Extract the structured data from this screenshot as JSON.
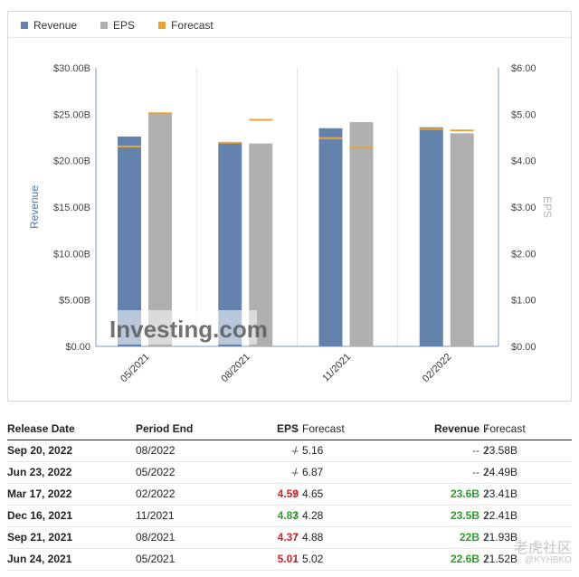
{
  "legend": {
    "revenue_label": "Revenue",
    "eps_label": "EPS",
    "forecast_label": "Forecast"
  },
  "colors": {
    "revenue": "#6383ad",
    "eps": "#b0b0b0",
    "forecast": "#e8a33a",
    "positive": "#2a9d2a",
    "negative": "#dd1f1f"
  },
  "chart_data": {
    "type": "bar",
    "categories": [
      "05/2021",
      "08/2021",
      "11/2021",
      "02/2022"
    ],
    "series": [
      {
        "name": "Revenue",
        "axis": "left",
        "values": [
          22.6,
          22.0,
          23.5,
          23.6
        ],
        "forecast": [
          21.52,
          21.93,
          22.41,
          23.41
        ]
      },
      {
        "name": "EPS",
        "axis": "right",
        "values": [
          5.01,
          4.37,
          4.83,
          4.59
        ],
        "forecast": [
          5.02,
          4.88,
          4.28,
          4.65
        ]
      }
    ],
    "left_axis": {
      "label": "Revenue",
      "ticks": [
        "$0.00",
        "$5.00B",
        "$10.00B",
        "$15.00B",
        "$20.00B",
        "$25.00B",
        "$30.00B"
      ],
      "ylim": [
        0,
        30
      ]
    },
    "right_axis": {
      "label": "EPS",
      "ticks": [
        "$0.00",
        "$1.00",
        "$2.00",
        "$3.00",
        "$4.00",
        "$5.00",
        "$6.00"
      ],
      "ylim": [
        0,
        6
      ]
    },
    "legend_position": "top-left",
    "grid": "vertical",
    "watermark": "Investing.com"
  },
  "table": {
    "headers": {
      "release_date": "Release Date",
      "period_end": "Period End",
      "eps": "EPS",
      "eps_sep": "/",
      "eps_forecast": "Forecast",
      "revenue": "Revenue",
      "rev_sep": "/",
      "revenue_forecast": "Forecast"
    },
    "rows": [
      {
        "release_date": "Sep 20, 2022",
        "period_end": "08/2022",
        "eps": "--",
        "eps_dir": "none",
        "sep1": "/",
        "eps_forecast": "5.16",
        "revenue": "--",
        "rev_dir": "none",
        "sep2": "/",
        "revenue_forecast": "23.58B"
      },
      {
        "release_date": "Jun 23, 2022",
        "period_end": "05/2022",
        "eps": "--",
        "eps_dir": "none",
        "sep1": "/",
        "eps_forecast": "6.87",
        "revenue": "--",
        "rev_dir": "none",
        "sep2": "/",
        "revenue_forecast": "24.49B"
      },
      {
        "release_date": "Mar 17, 2022",
        "period_end": "02/2022",
        "eps": "4.59",
        "eps_dir": "down",
        "sep1": "/",
        "eps_forecast": "4.65",
        "revenue": "23.6B",
        "rev_dir": "up",
        "sep2": "/",
        "revenue_forecast": "23.41B"
      },
      {
        "release_date": "Dec 16, 2021",
        "period_end": "11/2021",
        "eps": "4.83",
        "eps_dir": "up",
        "sep1": "/",
        "eps_forecast": "4.28",
        "revenue": "23.5B",
        "rev_dir": "up",
        "sep2": "/",
        "revenue_forecast": "22.41B"
      },
      {
        "release_date": "Sep 21, 2021",
        "period_end": "08/2021",
        "eps": "4.37",
        "eps_dir": "down",
        "sep1": "/",
        "eps_forecast": "4.88",
        "revenue": "22B",
        "rev_dir": "up",
        "sep2": "/",
        "revenue_forecast": "21.93B"
      },
      {
        "release_date": "Jun 24, 2021",
        "period_end": "05/2021",
        "eps": "5.01",
        "eps_dir": "down",
        "sep1": "/",
        "eps_forecast": "5.02",
        "revenue": "22.6B",
        "rev_dir": "up",
        "sep2": "/",
        "revenue_forecast": "21.52B"
      }
    ]
  },
  "watermark": {
    "text": "老虎社区",
    "handle": "@KYHBKO"
  }
}
